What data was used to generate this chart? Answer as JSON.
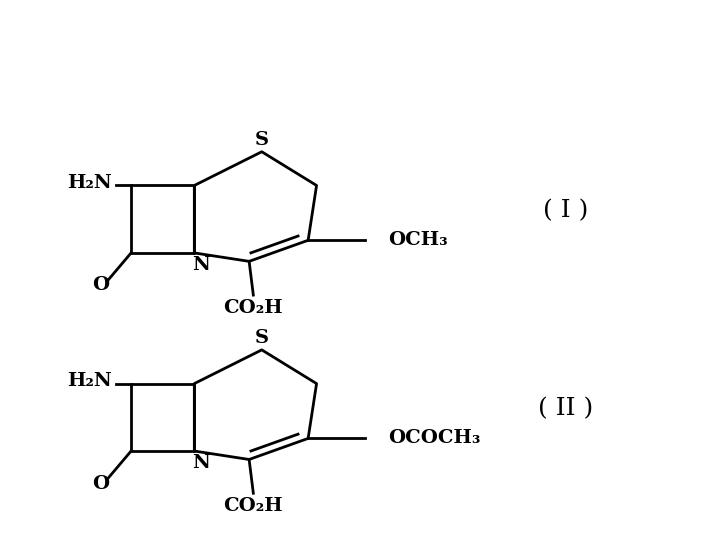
{
  "background_color": "#ffffff",
  "line_color": "#000000",
  "line_width": 2.0,
  "font_size": 14,
  "font_size_roman": 18,
  "struct_I": {
    "roman": "( I )",
    "side_chain": "OCH₃",
    "ox": 1.5,
    "oy": 6.5
  },
  "struct_II": {
    "roman": "( II )",
    "side_chain": "OCOCH₃",
    "ox": 1.5,
    "oy": 1.0
  },
  "ylim": [
    0,
    13
  ],
  "xlim": [
    0,
    14
  ]
}
